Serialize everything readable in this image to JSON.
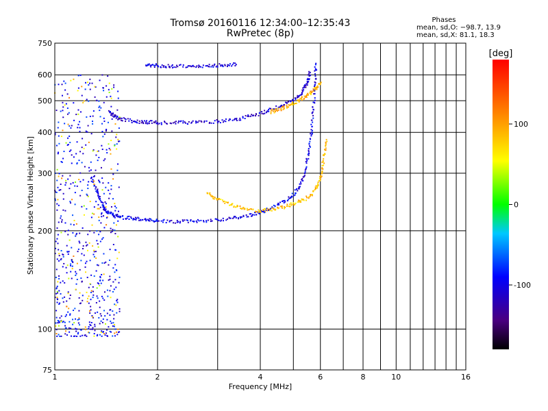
{
  "chart_data": {
    "type": "scatter",
    "title": "Tromsø 20160116 12:34:00–12:35:43",
    "subtitle": "RwPretec (8p)",
    "stats": {
      "title": "Phases",
      "o_line": "mean, sd,O: −98.7, 13.9",
      "x_line": "mean, sd,X:  81.1, 18.3"
    },
    "xlabel": "Frequency [MHz]",
    "ylabel": "Stationary phase Virtual Height [km]",
    "x_scale": "log",
    "y_scale": "log",
    "xlim": [
      1,
      16
    ],
    "ylim": [
      75,
      750
    ],
    "x_ticks": [
      1,
      2,
      4,
      6,
      8,
      10,
      16
    ],
    "y_ticks": [
      75,
      100,
      200,
      300,
      400,
      500,
      600,
      750
    ],
    "colorbar": {
      "label": "[deg]",
      "range": [
        -180,
        180
      ],
      "ticks": [
        100,
        0,
        -100
      ],
      "colormap": "rainbow: black → purple → blue → cyan → green → yellow → orange → red"
    },
    "grid": true,
    "traces": [
      {
        "description": "E/F1 trace (O-mode, bluish)",
        "phase_deg": -100,
        "points": [
          [
            1.28,
            290
          ],
          [
            1.33,
            262
          ],
          [
            1.38,
            240
          ],
          [
            1.42,
            228
          ],
          [
            1.48,
            224
          ],
          [
            1.55,
            220
          ],
          [
            1.7,
            218
          ],
          [
            1.85,
            216
          ],
          [
            2.0,
            214
          ],
          [
            2.3,
            213
          ],
          [
            2.6,
            214
          ],
          [
            3.0,
            216
          ],
          [
            3.4,
            219
          ],
          [
            3.8,
            224
          ],
          [
            4.1,
            230
          ],
          [
            4.5,
            240
          ],
          [
            4.9,
            252
          ],
          [
            5.2,
            270
          ],
          [
            5.4,
            300
          ],
          [
            5.55,
            345
          ],
          [
            5.65,
            400
          ],
          [
            5.72,
            470
          ],
          [
            5.78,
            560
          ],
          [
            5.82,
            650
          ]
        ]
      },
      {
        "description": "E/F1 trace (X-mode, yellowish)",
        "phase_deg": 85,
        "points": [
          [
            2.8,
            260
          ],
          [
            3.0,
            250
          ],
          [
            3.3,
            240
          ],
          [
            3.6,
            234
          ],
          [
            4.0,
            230
          ],
          [
            4.4,
            232
          ],
          [
            4.8,
            238
          ],
          [
            5.2,
            245
          ],
          [
            5.6,
            255
          ],
          [
            5.9,
            275
          ],
          [
            6.05,
            300
          ],
          [
            6.15,
            340
          ],
          [
            6.25,
            380
          ]
        ]
      },
      {
        "description": "F2 trace (O-mode)",
        "phase_deg": -110,
        "points": [
          [
            1.45,
            460
          ],
          [
            1.5,
            448
          ],
          [
            1.55,
            440
          ],
          [
            1.7,
            432
          ],
          [
            1.85,
            430
          ],
          [
            2.0,
            428
          ],
          [
            2.3,
            428
          ],
          [
            2.6,
            430
          ],
          [
            3.0,
            432
          ],
          [
            3.4,
            438
          ],
          [
            3.8,
            450
          ],
          [
            4.2,
            465
          ],
          [
            4.6,
            482
          ],
          [
            5.0,
            500
          ],
          [
            5.3,
            530
          ],
          [
            5.5,
            570
          ],
          [
            5.6,
            610
          ]
        ]
      },
      {
        "description": "F2 trace (X-mode)",
        "phase_deg": 90,
        "points": [
          [
            4.3,
            462
          ],
          [
            4.6,
            472
          ],
          [
            4.9,
            485
          ],
          [
            5.2,
            500
          ],
          [
            5.5,
            520
          ],
          [
            5.8,
            545
          ],
          [
            6.0,
            565
          ]
        ]
      },
      {
        "description": "Multi-hop echo (O-mode)",
        "phase_deg": -105,
        "points": [
          [
            1.85,
            642
          ],
          [
            2.0,
            640
          ],
          [
            2.2,
            638
          ],
          [
            2.5,
            638
          ],
          [
            2.8,
            640
          ],
          [
            3.1,
            642
          ],
          [
            3.4,
            645
          ]
        ]
      },
      {
        "description": "Low-frequency scatter region",
        "phase_deg": -95,
        "region": {
          "x": [
            1.0,
            1.55
          ],
          "y": [
            95,
            600
          ]
        }
      }
    ]
  }
}
